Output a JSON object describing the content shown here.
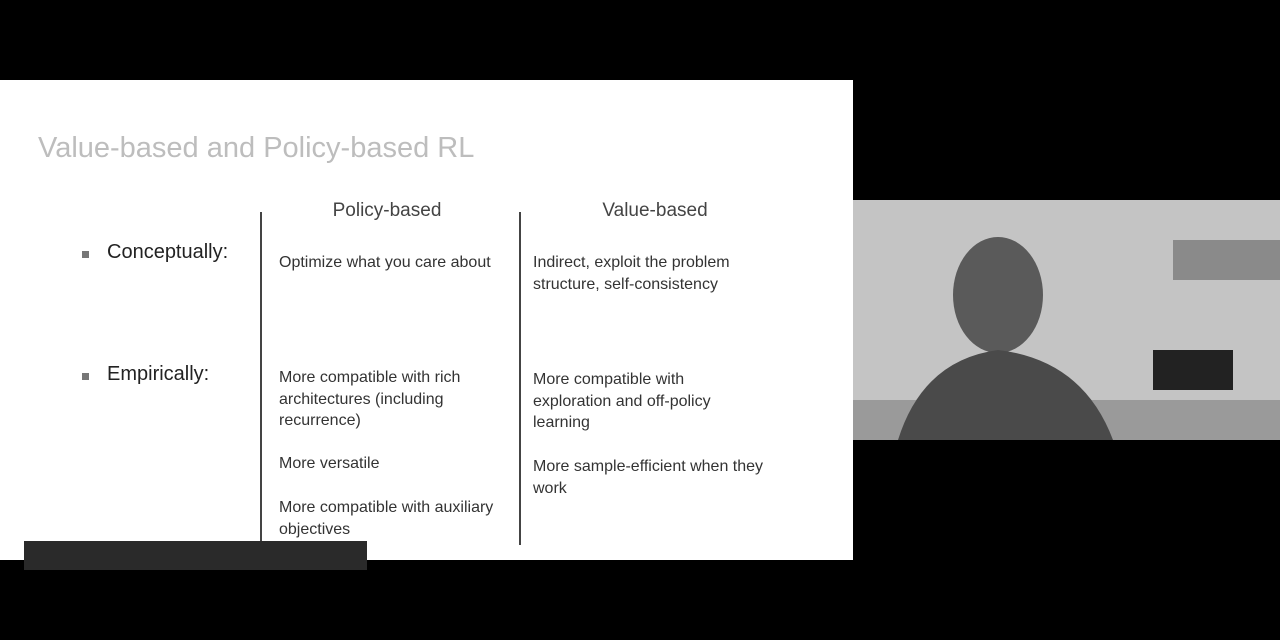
{
  "slide": {
    "title": "Value-based and Policy-based RL",
    "columns": [
      "Policy-based",
      "Value-based"
    ],
    "rows": [
      {
        "label": "Conceptually:",
        "policy": [
          "Optimize what you care about"
        ],
        "value": [
          "Indirect, exploit the problem structure, self-consistency"
        ]
      },
      {
        "label": "Empirically:",
        "policy": [
          "More compatible with rich architectures (including recurrence)",
          "More versatile",
          "More compatible with auxiliary objectives"
        ],
        "value": [
          "More compatible with exploration and off-policy learning",
          "More sample-efficient when they work"
        ]
      }
    ]
  }
}
